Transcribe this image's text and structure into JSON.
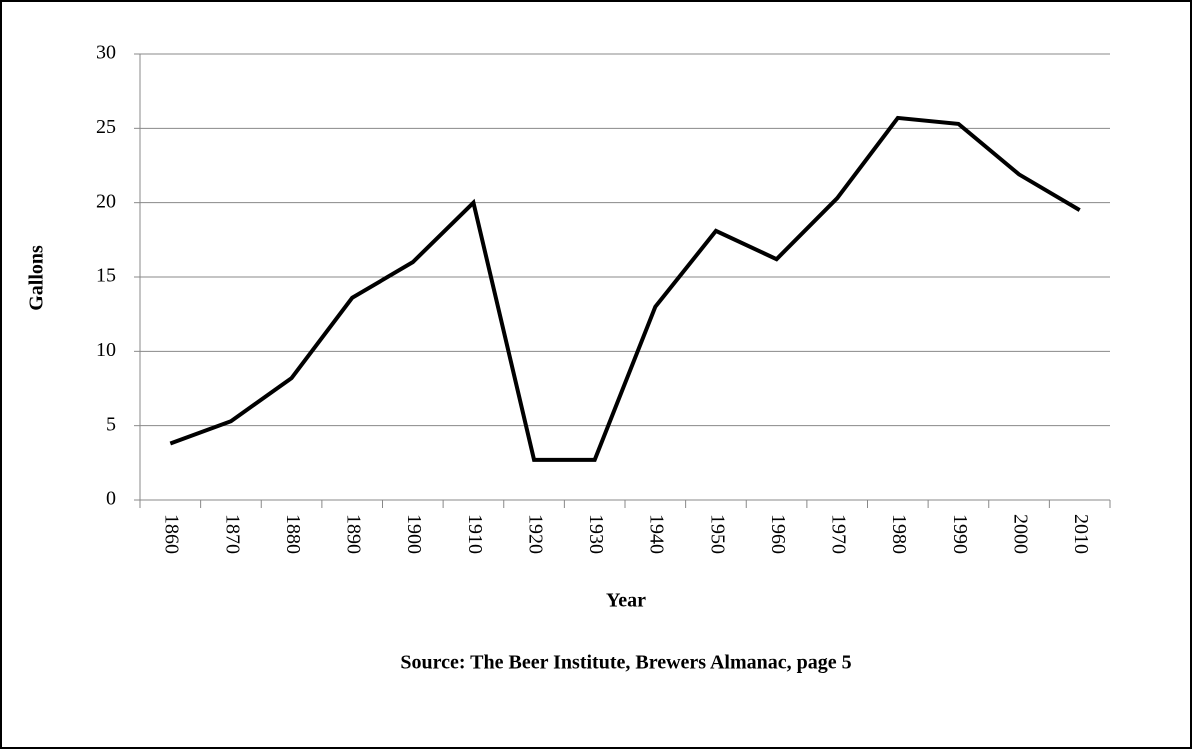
{
  "chart_data": {
    "type": "line",
    "y_label": "Gallons",
    "x_label": "Year",
    "caption": "Source: The Beer Institute, Brewers Almanac, page 5",
    "categories": [
      "1860",
      "1870",
      "1880",
      "1890",
      "1900",
      "1910",
      "1920",
      "1930",
      "1940",
      "1950",
      "1960",
      "1970",
      "1980",
      "1990",
      "2000",
      "2010"
    ],
    "series": [
      {
        "color": "#000000",
        "values": [
          3.8,
          5.3,
          8.2,
          13.6,
          16.0,
          20.0,
          2.7,
          2.7,
          13.0,
          18.1,
          16.2,
          20.3,
          25.7,
          25.3,
          21.9,
          19.5
        ]
      }
    ],
    "ylim": [
      0,
      30
    ],
    "yticks": [
      0,
      5,
      10,
      15,
      20,
      25,
      30
    ],
    "grid": true
  }
}
